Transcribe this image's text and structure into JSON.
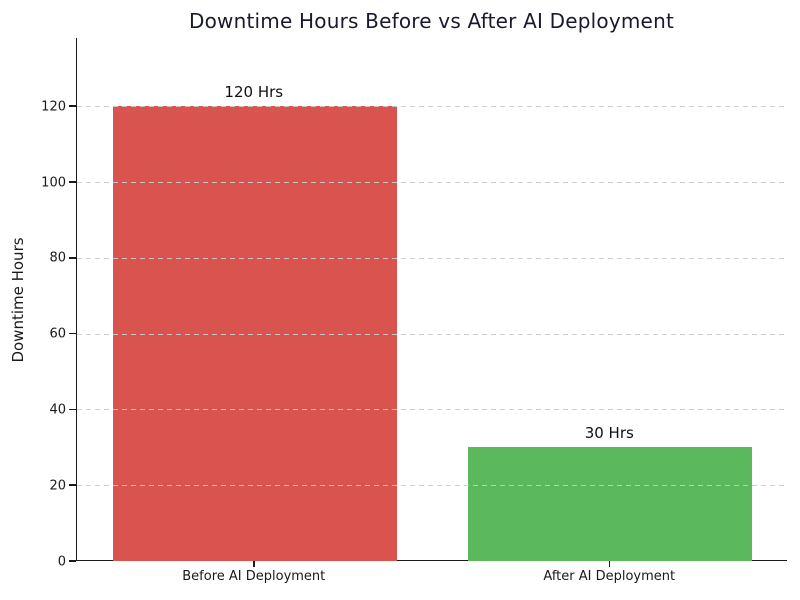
{
  "chart_data": {
    "type": "bar",
    "title": "Downtime Hours Before vs After AI Deployment",
    "title_color": "#1a1a2e",
    "xlabel": "",
    "ylabel": "Downtime Hours",
    "categories": [
      "Before AI Deployment",
      "After AI Deployment"
    ],
    "values": [
      120,
      30
    ],
    "bar_labels": [
      "120 Hrs",
      "30 Hrs"
    ],
    "bar_colors": [
      "#d9534f",
      "#5cb85c"
    ],
    "yticks": [
      0,
      20,
      40,
      60,
      80,
      100,
      120
    ],
    "ylim": [
      0,
      138
    ],
    "grid": "horizontal-dashed",
    "grid_color": "#cccccc",
    "axis_color": "#1a1a1a",
    "legend": "none"
  }
}
